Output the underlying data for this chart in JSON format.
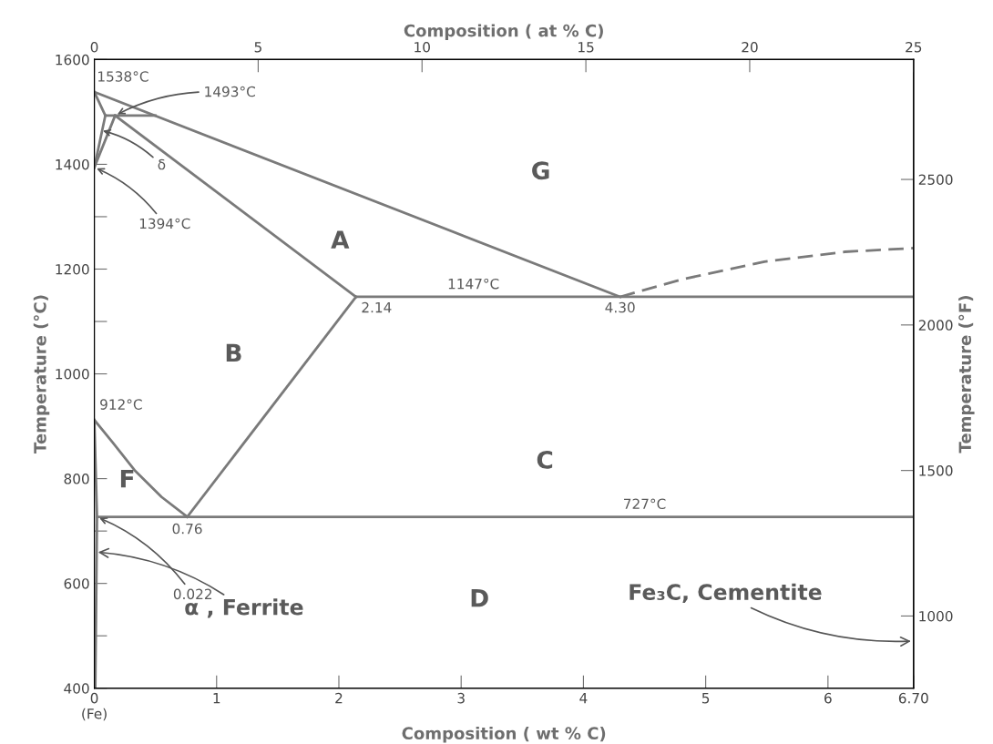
{
  "chart_data": {
    "type": "line",
    "xlabel": "Composition ( wt % C)",
    "x2label": "Composition ( at % C)",
    "ylabel": "Temperature (°C)",
    "y2label": "Temperature (°F)",
    "xlim": [
      0,
      6.7
    ],
    "xticks": [
      {
        "value": 0,
        "label": "0\n(Fe)"
      },
      1,
      2,
      3,
      4,
      5,
      6,
      {
        "value": 6.7,
        "label": "6.70"
      }
    ],
    "x2lim": [
      0,
      25
    ],
    "x2ticks": [
      0,
      5,
      10,
      15,
      20,
      25
    ],
    "ylim": [
      400,
      1600
    ],
    "yticks": [
      400,
      {
        "value": 500,
        "label": null
      },
      600,
      {
        "value": 700,
        "label": null
      },
      800,
      1000,
      {
        "value": 1100,
        "label": null
      },
      1200,
      {
        "value": 1300,
        "label": null
      },
      1400,
      1600
    ],
    "y2lim": [
      752,
      2912
    ],
    "y2ticks": [
      1000,
      1500,
      2000,
      2500
    ],
    "grid": false,
    "marker": "none",
    "line_style": "solid",
    "series": [
      {
        "color": "#7a7a7a",
        "x": [
          0,
          4.3
        ],
        "values": [
          1538,
          1147
        ]
      },
      {
        "color": "#7a7a7a",
        "x": [
          4.3,
          4.8,
          5.48,
          6.14,
          6.7
        ],
        "values": [
          1147,
          1180,
          1214,
          1233,
          1240
        ],
        "line_style": "dashed"
      },
      {
        "color": "#7a7a7a",
        "x": [
          2.14,
          6.7
        ],
        "values": [
          1147,
          1147
        ]
      },
      {
        "color": "#7a7a7a",
        "x": [
          0.022,
          6.7
        ],
        "values": [
          727,
          727
        ]
      },
      {
        "color": "#7a7a7a",
        "x": [
          0,
          0.15,
          0.33,
          0.55,
          0.76
        ],
        "values": [
          912,
          869,
          816,
          765,
          727
        ]
      },
      {
        "color": "#7a7a7a",
        "x": [
          0.76,
          2.14
        ],
        "values": [
          727,
          1147
        ]
      },
      {
        "color": "#7a7a7a",
        "x": [
          0.17,
          2.14
        ],
        "values": [
          1493,
          1147
        ]
      },
      {
        "color": "#7a7a7a",
        "x": [
          0.09,
          0.5
        ],
        "values": [
          1493,
          1493
        ]
      },
      {
        "color": "#7a7a7a",
        "x": [
          0,
          0.09
        ],
        "values": [
          1538,
          1493
        ]
      },
      {
        "color": "#7a7a7a",
        "x": [
          0,
          0.09
        ],
        "values": [
          1394,
          1493
        ]
      },
      {
        "color": "#7a7a7a",
        "x": [
          0,
          0.17
        ],
        "values": [
          1394,
          1493
        ]
      },
      {
        "color": "#7a7a7a",
        "x": [
          0,
          0.022,
          0.008
        ],
        "values": [
          912,
          727,
          400
        ]
      }
    ],
    "annotations": [
      {
        "text": "1538°C",
        "x": 0,
        "y": 1538
      },
      {
        "text": "1493°C",
        "x": 0.17,
        "y": 1493
      },
      {
        "text": "δ",
        "x": 0.05,
        "y": 1465
      },
      {
        "text": "1394°C",
        "x": 0,
        "y": 1394
      },
      {
        "text": "1147°C",
        "x": 3.1,
        "y": 1147
      },
      {
        "text": "2.14",
        "x": 2.14,
        "y": 1147
      },
      {
        "text": "4.30",
        "x": 4.3,
        "y": 1147
      },
      {
        "text": "912°C",
        "x": 0,
        "y": 912
      },
      {
        "text": "0.76",
        "x": 0.76,
        "y": 727
      },
      {
        "text": "0.022",
        "x": 0.022,
        "y": 727
      },
      {
        "text": "727°C",
        "x": 4.5,
        "y": 727
      },
      {
        "text": "α , Ferrite",
        "x": 0.01,
        "y": 660
      },
      "Fe₃C, Cementite",
      "A",
      "B",
      "C",
      "D",
      "F",
      "G"
    ]
  }
}
